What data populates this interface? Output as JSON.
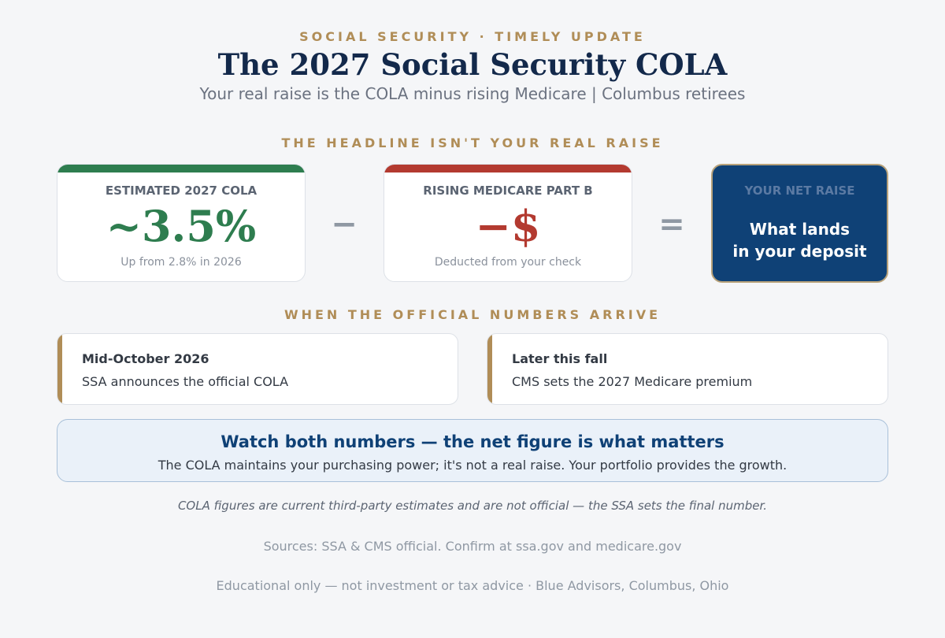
{
  "header": {
    "kicker": "SOCIAL SECURITY · TIMELY UPDATE",
    "title": "The 2027 Social Security COLA",
    "subtitle": "Your real raise is the COLA minus rising Medicare | Columbus retirees"
  },
  "equation": {
    "heading": "THE HEADLINE ISN'T YOUR REAL RAISE",
    "cards": [
      {
        "label": "ESTIMATED 2027 COLA",
        "value": "~3.5%",
        "note": "Up from 2.8% in 2026"
      },
      {
        "label": "RISING MEDICARE PART B",
        "value": "−$",
        "note": "Deducted from your check"
      }
    ],
    "operators": [
      "−",
      "="
    ],
    "result": {
      "label": "YOUR NET RAISE",
      "lines": [
        "What lands",
        "in your deposit"
      ]
    }
  },
  "timeline": {
    "heading": "WHEN THE OFFICIAL NUMBERS ARRIVE",
    "items": [
      {
        "when": "Mid-October 2026",
        "what": "SSA announces the official COLA"
      },
      {
        "when": "Later this fall",
        "what": "CMS sets the 2027 Medicare premium"
      }
    ]
  },
  "callout": {
    "title": "Watch both numbers — the net figure is what matters",
    "text": "The COLA maintains your purchasing power; it's not a real raise. Your portfolio provides the growth."
  },
  "footer": {
    "disclaimer": "COLA figures are current third-party estimates and are not official — the SSA sets the final number.",
    "sources": "Sources: SSA & CMS official. Confirm at ssa.gov and medicare.gov",
    "credit": "Educational only — not investment or tax advice · Blue Advisors, Columbus, Ohio"
  }
}
